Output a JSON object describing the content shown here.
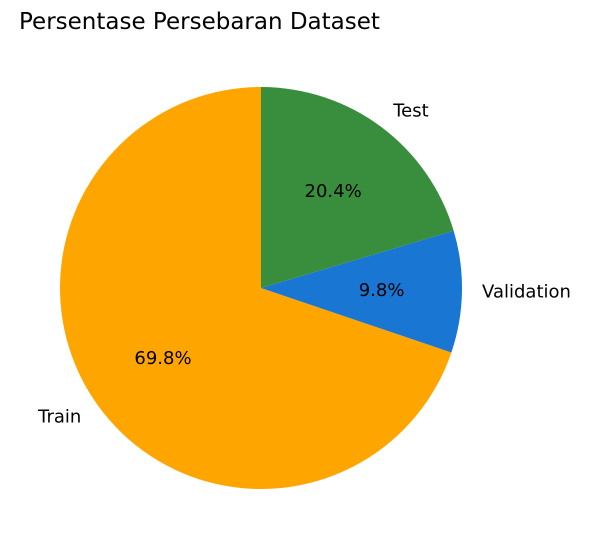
{
  "chart_data": {
    "type": "pie",
    "title": "Persentase Persebaran Dataset",
    "slices": [
      {
        "label": "Train",
        "value": 69.8,
        "pct_label": "69.8%",
        "color": "#FFA500"
      },
      {
        "label": "Validation",
        "value": 9.8,
        "pct_label": "9.8%",
        "color": "#1976D2"
      },
      {
        "label": "Test",
        "value": 20.4,
        "pct_label": "20.4%",
        "color": "#388E3C"
      }
    ],
    "start_angle_deg": 90,
    "direction": "counterclockwise"
  }
}
